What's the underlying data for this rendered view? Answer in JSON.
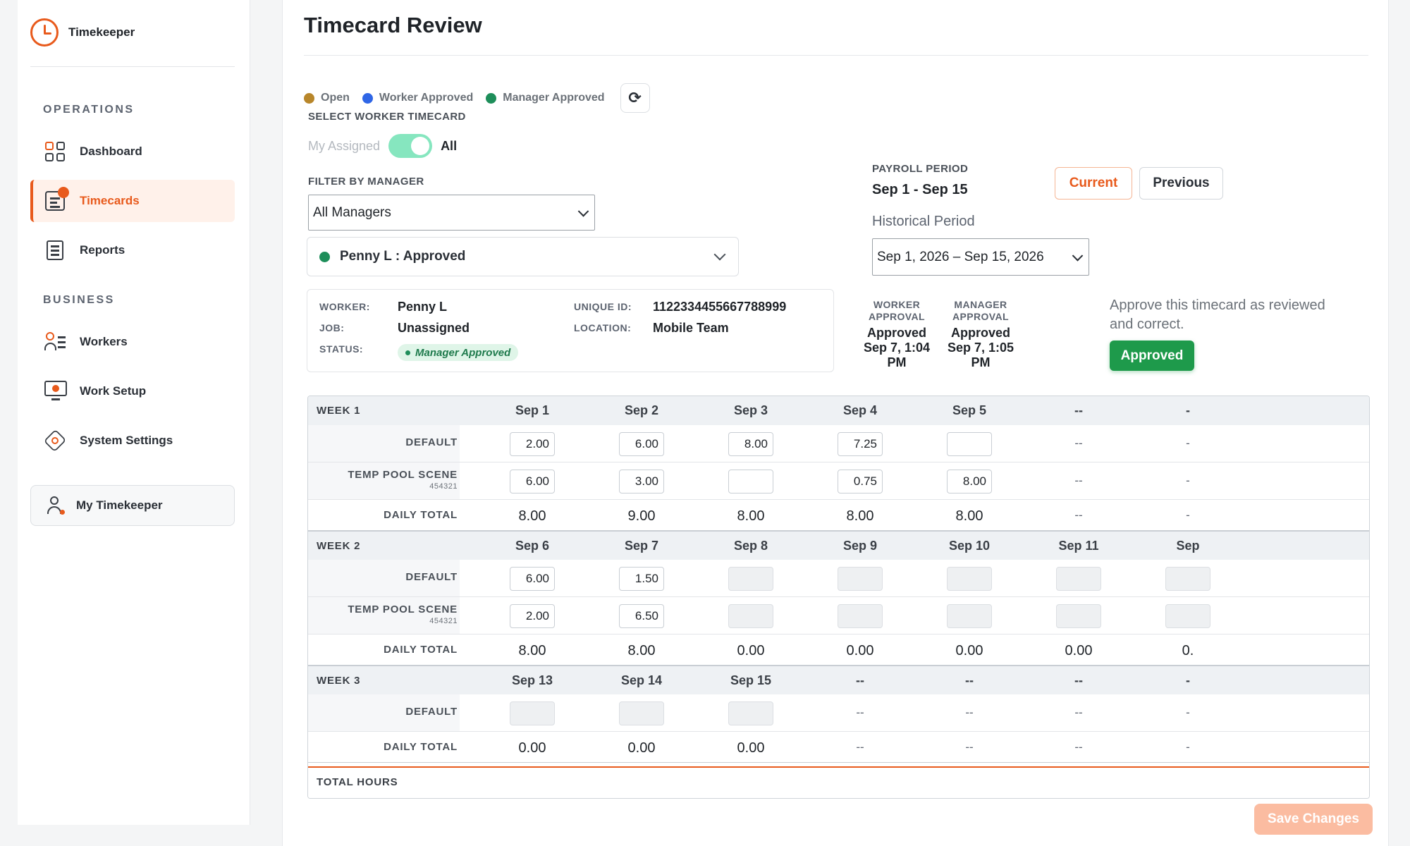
{
  "app": {
    "name": "Timekeeper"
  },
  "sidebar": {
    "sections": [
      {
        "label": "OPERATIONS"
      },
      {
        "label": "BUSINESS"
      }
    ],
    "items": [
      {
        "label": "Dashboard",
        "icon": "dashboard-icon"
      },
      {
        "label": "Timecards",
        "icon": "timecard-icon",
        "active": true
      },
      {
        "label": "Reports",
        "icon": "reports-icon"
      },
      {
        "label": "Workers",
        "icon": "workers-icon"
      },
      {
        "label": "Work Setup",
        "icon": "work-setup-icon"
      },
      {
        "label": "System Settings",
        "icon": "settings-icon"
      }
    ],
    "my_timekeeper": "My Timekeeper"
  },
  "page": {
    "title": "Timecard Review"
  },
  "legend": [
    {
      "label": "Open",
      "color": "#b8862a"
    },
    {
      "label": "Worker Approved",
      "color": "#2f66e6"
    },
    {
      "label": "Manager Approved",
      "color": "#1e8e5a"
    }
  ],
  "select_worker": {
    "label": "SELECT WORKER TIMECARD",
    "toggle_left": "My Assigned",
    "toggle_right": "All",
    "toggle_on": true
  },
  "filter": {
    "label": "FILTER BY MANAGER",
    "value": "All Managers"
  },
  "worker_select": {
    "value": "Penny L : Approved"
  },
  "worker_info": {
    "worker_label": "WORKER:",
    "worker": "Penny L",
    "job_label": "JOB:",
    "job": "Unassigned",
    "status_label": "STATUS:",
    "status": "Manager Approved",
    "uid_label": "UNIQUE ID:",
    "uid": "1122334455667788999",
    "location_label": "LOCATION:",
    "location": "Mobile Team"
  },
  "payroll": {
    "label": "PAYROLL PERIOD",
    "value": "Sep 1 - Sep 15",
    "current_label": "Current",
    "previous_label": "Previous",
    "historical_label": "Historical Period",
    "historical_value": "Sep 1, 2026 – Sep 15, 2026"
  },
  "approvals": {
    "worker_head_1": "WORKER",
    "worker_head_2": "APPROVAL",
    "worker_val_1": "Approved",
    "worker_val_2": "Sep 7, 1:04",
    "worker_val_3": "PM",
    "manager_head_1": "MANAGER",
    "manager_head_2": "APPROVAL",
    "manager_val_1": "Approved",
    "manager_val_2": "Sep 7, 1:05",
    "manager_val_3": "PM",
    "approve_text": "Approve this timecard as reviewed and correct.",
    "approved_button": "Approved"
  },
  "table": {
    "total_hours_label": "TOTAL HOURS",
    "weeks": [
      {
        "label": "WEEK 1",
        "days": [
          "Sep 1",
          "Sep 2",
          "Sep 3",
          "Sep 4",
          "Sep 5",
          "--",
          "-"
        ],
        "rows": [
          {
            "label": "DEFAULT",
            "sub": "",
            "cells": [
              {
                "t": "in",
                "v": "2.00"
              },
              {
                "t": "in",
                "v": "6.00"
              },
              {
                "t": "in",
                "v": "8.00"
              },
              {
                "t": "in",
                "v": "7.25"
              },
              {
                "t": "in",
                "v": ""
              },
              {
                "t": "dash",
                "v": "--"
              },
              {
                "t": "dash",
                "v": "-"
              }
            ]
          },
          {
            "label": "TEMP POOL SCENE",
            "sub": "454321",
            "cells": [
              {
                "t": "in",
                "v": "6.00"
              },
              {
                "t": "in",
                "v": "3.00"
              },
              {
                "t": "in",
                "v": ""
              },
              {
                "t": "in",
                "v": "0.75"
              },
              {
                "t": "in",
                "v": "8.00"
              },
              {
                "t": "dash",
                "v": "--"
              },
              {
                "t": "dash",
                "v": "-"
              }
            ]
          }
        ],
        "totals": [
          "8.00",
          "9.00",
          "8.00",
          "8.00",
          "8.00",
          "--",
          "-"
        ]
      },
      {
        "label": "WEEK 2",
        "days": [
          "Sep 6",
          "Sep 7",
          "Sep 8",
          "Sep 9",
          "Sep 10",
          "Sep 11",
          "Sep"
        ],
        "rows": [
          {
            "label": "DEFAULT",
            "sub": "",
            "cells": [
              {
                "t": "in",
                "v": "6.00"
              },
              {
                "t": "in",
                "v": "1.50"
              },
              {
                "t": "dis",
                "v": ""
              },
              {
                "t": "dis",
                "v": ""
              },
              {
                "t": "dis",
                "v": ""
              },
              {
                "t": "dis",
                "v": ""
              },
              {
                "t": "dis",
                "v": ""
              }
            ]
          },
          {
            "label": "TEMP POOL SCENE",
            "sub": "454321",
            "cells": [
              {
                "t": "in",
                "v": "2.00"
              },
              {
                "t": "in",
                "v": "6.50"
              },
              {
                "t": "dis",
                "v": ""
              },
              {
                "t": "dis",
                "v": ""
              },
              {
                "t": "dis",
                "v": ""
              },
              {
                "t": "dis",
                "v": ""
              },
              {
                "t": "dis",
                "v": ""
              }
            ]
          }
        ],
        "totals": [
          "8.00",
          "8.00",
          "0.00",
          "0.00",
          "0.00",
          "0.00",
          "0."
        ]
      },
      {
        "label": "WEEK 3",
        "days": [
          "Sep 13",
          "Sep 14",
          "Sep 15",
          "--",
          "--",
          "--",
          "-"
        ],
        "rows": [
          {
            "label": "DEFAULT",
            "sub": "",
            "cells": [
              {
                "t": "dis",
                "v": ""
              },
              {
                "t": "dis",
                "v": ""
              },
              {
                "t": "dis",
                "v": ""
              },
              {
                "t": "dash",
                "v": "--"
              },
              {
                "t": "dash",
                "v": "--"
              },
              {
                "t": "dash",
                "v": "--"
              },
              {
                "t": "dash",
                "v": "-"
              }
            ]
          }
        ],
        "totals": [
          "0.00",
          "0.00",
          "0.00",
          "--",
          "--",
          "--",
          "-"
        ]
      }
    ]
  },
  "actions": {
    "save_label": "Save Changes"
  }
}
